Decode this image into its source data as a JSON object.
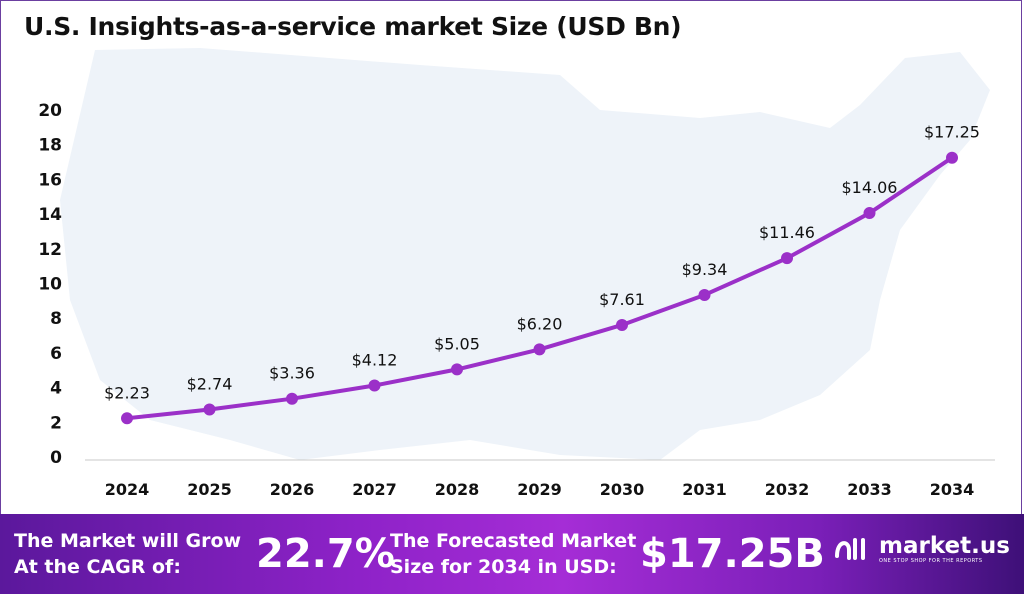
{
  "chart_data": {
    "type": "line",
    "title": "U.S. Insights-as-a-service market Size (USD Bn)",
    "categories": [
      "2024",
      "2025",
      "2026",
      "2027",
      "2028",
      "2029",
      "2030",
      "2031",
      "2032",
      "2033",
      "2034"
    ],
    "values": [
      2.23,
      2.74,
      3.36,
      4.12,
      5.05,
      6.2,
      7.61,
      9.34,
      11.46,
      14.06,
      17.25
    ],
    "data_labels": [
      "$2.23",
      "$2.74",
      "$3.36",
      "$4.12",
      "$5.05",
      "$6.20",
      "$7.61",
      "$9.34",
      "$11.46",
      "$14.06",
      "$17.25"
    ],
    "yticks": [
      "0",
      "2",
      "4",
      "6",
      "8",
      "10",
      "12",
      "14",
      "16",
      "18",
      "20"
    ],
    "ylim": [
      0,
      20
    ],
    "xlabel": "",
    "ylabel": "",
    "grid": false,
    "line_color": "#9b30c8",
    "background": "US map silhouette"
  },
  "banner": {
    "cagr_label_line1": "The Market will Grow",
    "cagr_label_line2": "At the CAGR of:",
    "cagr_value": "22.7%",
    "forecast_label_line1": "The Forecasted Market",
    "forecast_label_line2": "Size for 2034 in USD:",
    "forecast_value": "$17.25B",
    "logo": "market.us",
    "logo_tagline": "ONE STOP SHOP FOR THE REPORTS"
  }
}
